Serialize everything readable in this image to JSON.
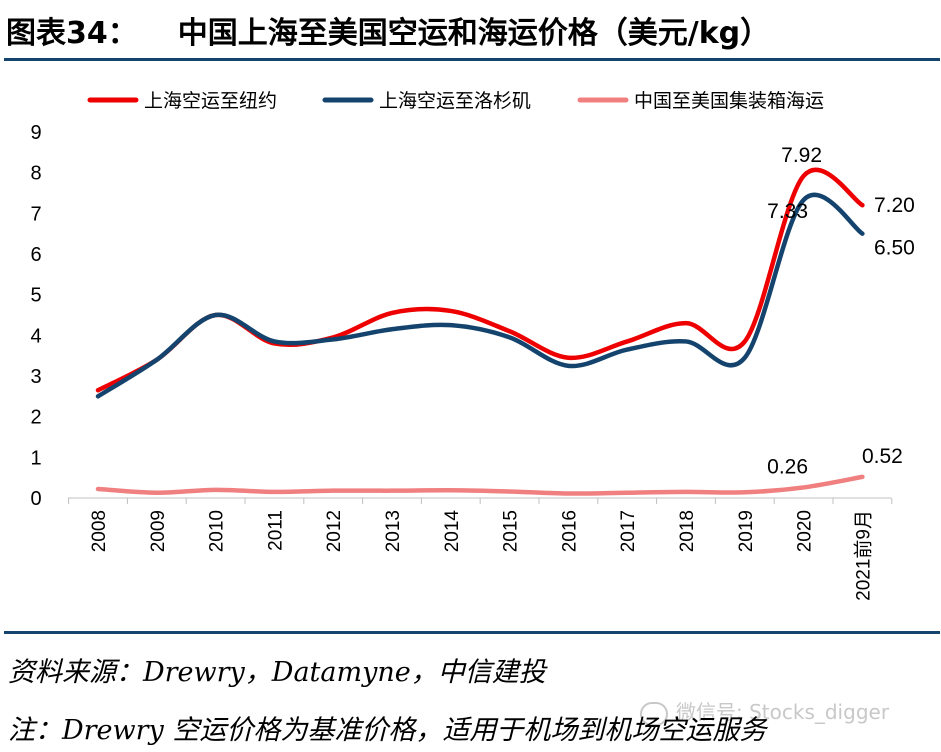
{
  "header": {
    "figure_no": "图表34：",
    "title": "中国上海至美国空运和海运价格（美元/kg）"
  },
  "chart_data": {
    "type": "line",
    "categories": [
      "2008",
      "2009",
      "2010",
      "2011",
      "2012",
      "2013",
      "2014",
      "2015",
      "2016",
      "2017",
      "2018",
      "2019",
      "2020",
      "2021前9月"
    ],
    "series": [
      {
        "name": "上海空运至纽约",
        "color": "#ee0000",
        "values": [
          2.65,
          3.4,
          4.5,
          3.8,
          3.95,
          4.55,
          4.6,
          4.1,
          3.45,
          3.85,
          4.3,
          3.85,
          7.92,
          7.2
        ]
      },
      {
        "name": "上海空运至洛杉矶",
        "color": "#14446e",
        "values": [
          2.5,
          3.4,
          4.5,
          3.85,
          3.9,
          4.15,
          4.25,
          3.95,
          3.25,
          3.65,
          3.85,
          3.45,
          7.33,
          6.5
        ]
      },
      {
        "name": "中国至美国集装箱海运",
        "color": "#f08080",
        "values": [
          0.22,
          0.13,
          0.2,
          0.15,
          0.18,
          0.18,
          0.19,
          0.16,
          0.11,
          0.13,
          0.15,
          0.14,
          0.26,
          0.52
        ]
      }
    ],
    "ylim": [
      0,
      9
    ],
    "yticks": [
      "0",
      "1",
      "2",
      "3",
      "4",
      "5",
      "6",
      "7",
      "8",
      "9"
    ],
    "grid": false,
    "legend_position": "top",
    "annotations": [
      {
        "text": "7.92",
        "series": 0,
        "index": 12
      },
      {
        "text": "7.20",
        "series": 0,
        "index": 13
      },
      {
        "text": "7.33",
        "series": 1,
        "index": 12
      },
      {
        "text": "6.50",
        "series": 1,
        "index": 13
      },
      {
        "text": "0.26",
        "series": 2,
        "index": 12
      },
      {
        "text": "0.52",
        "series": 2,
        "index": 13
      }
    ]
  },
  "footer": {
    "source": "资料来源：Drewry，Datamyne，中信建投",
    "note": "注：Drewry 空运价格为基准价格，适用于机场到机场空运服务"
  },
  "watermark": {
    "text": "微信号: Stocks_digger",
    "icon": "wechat-icon"
  }
}
